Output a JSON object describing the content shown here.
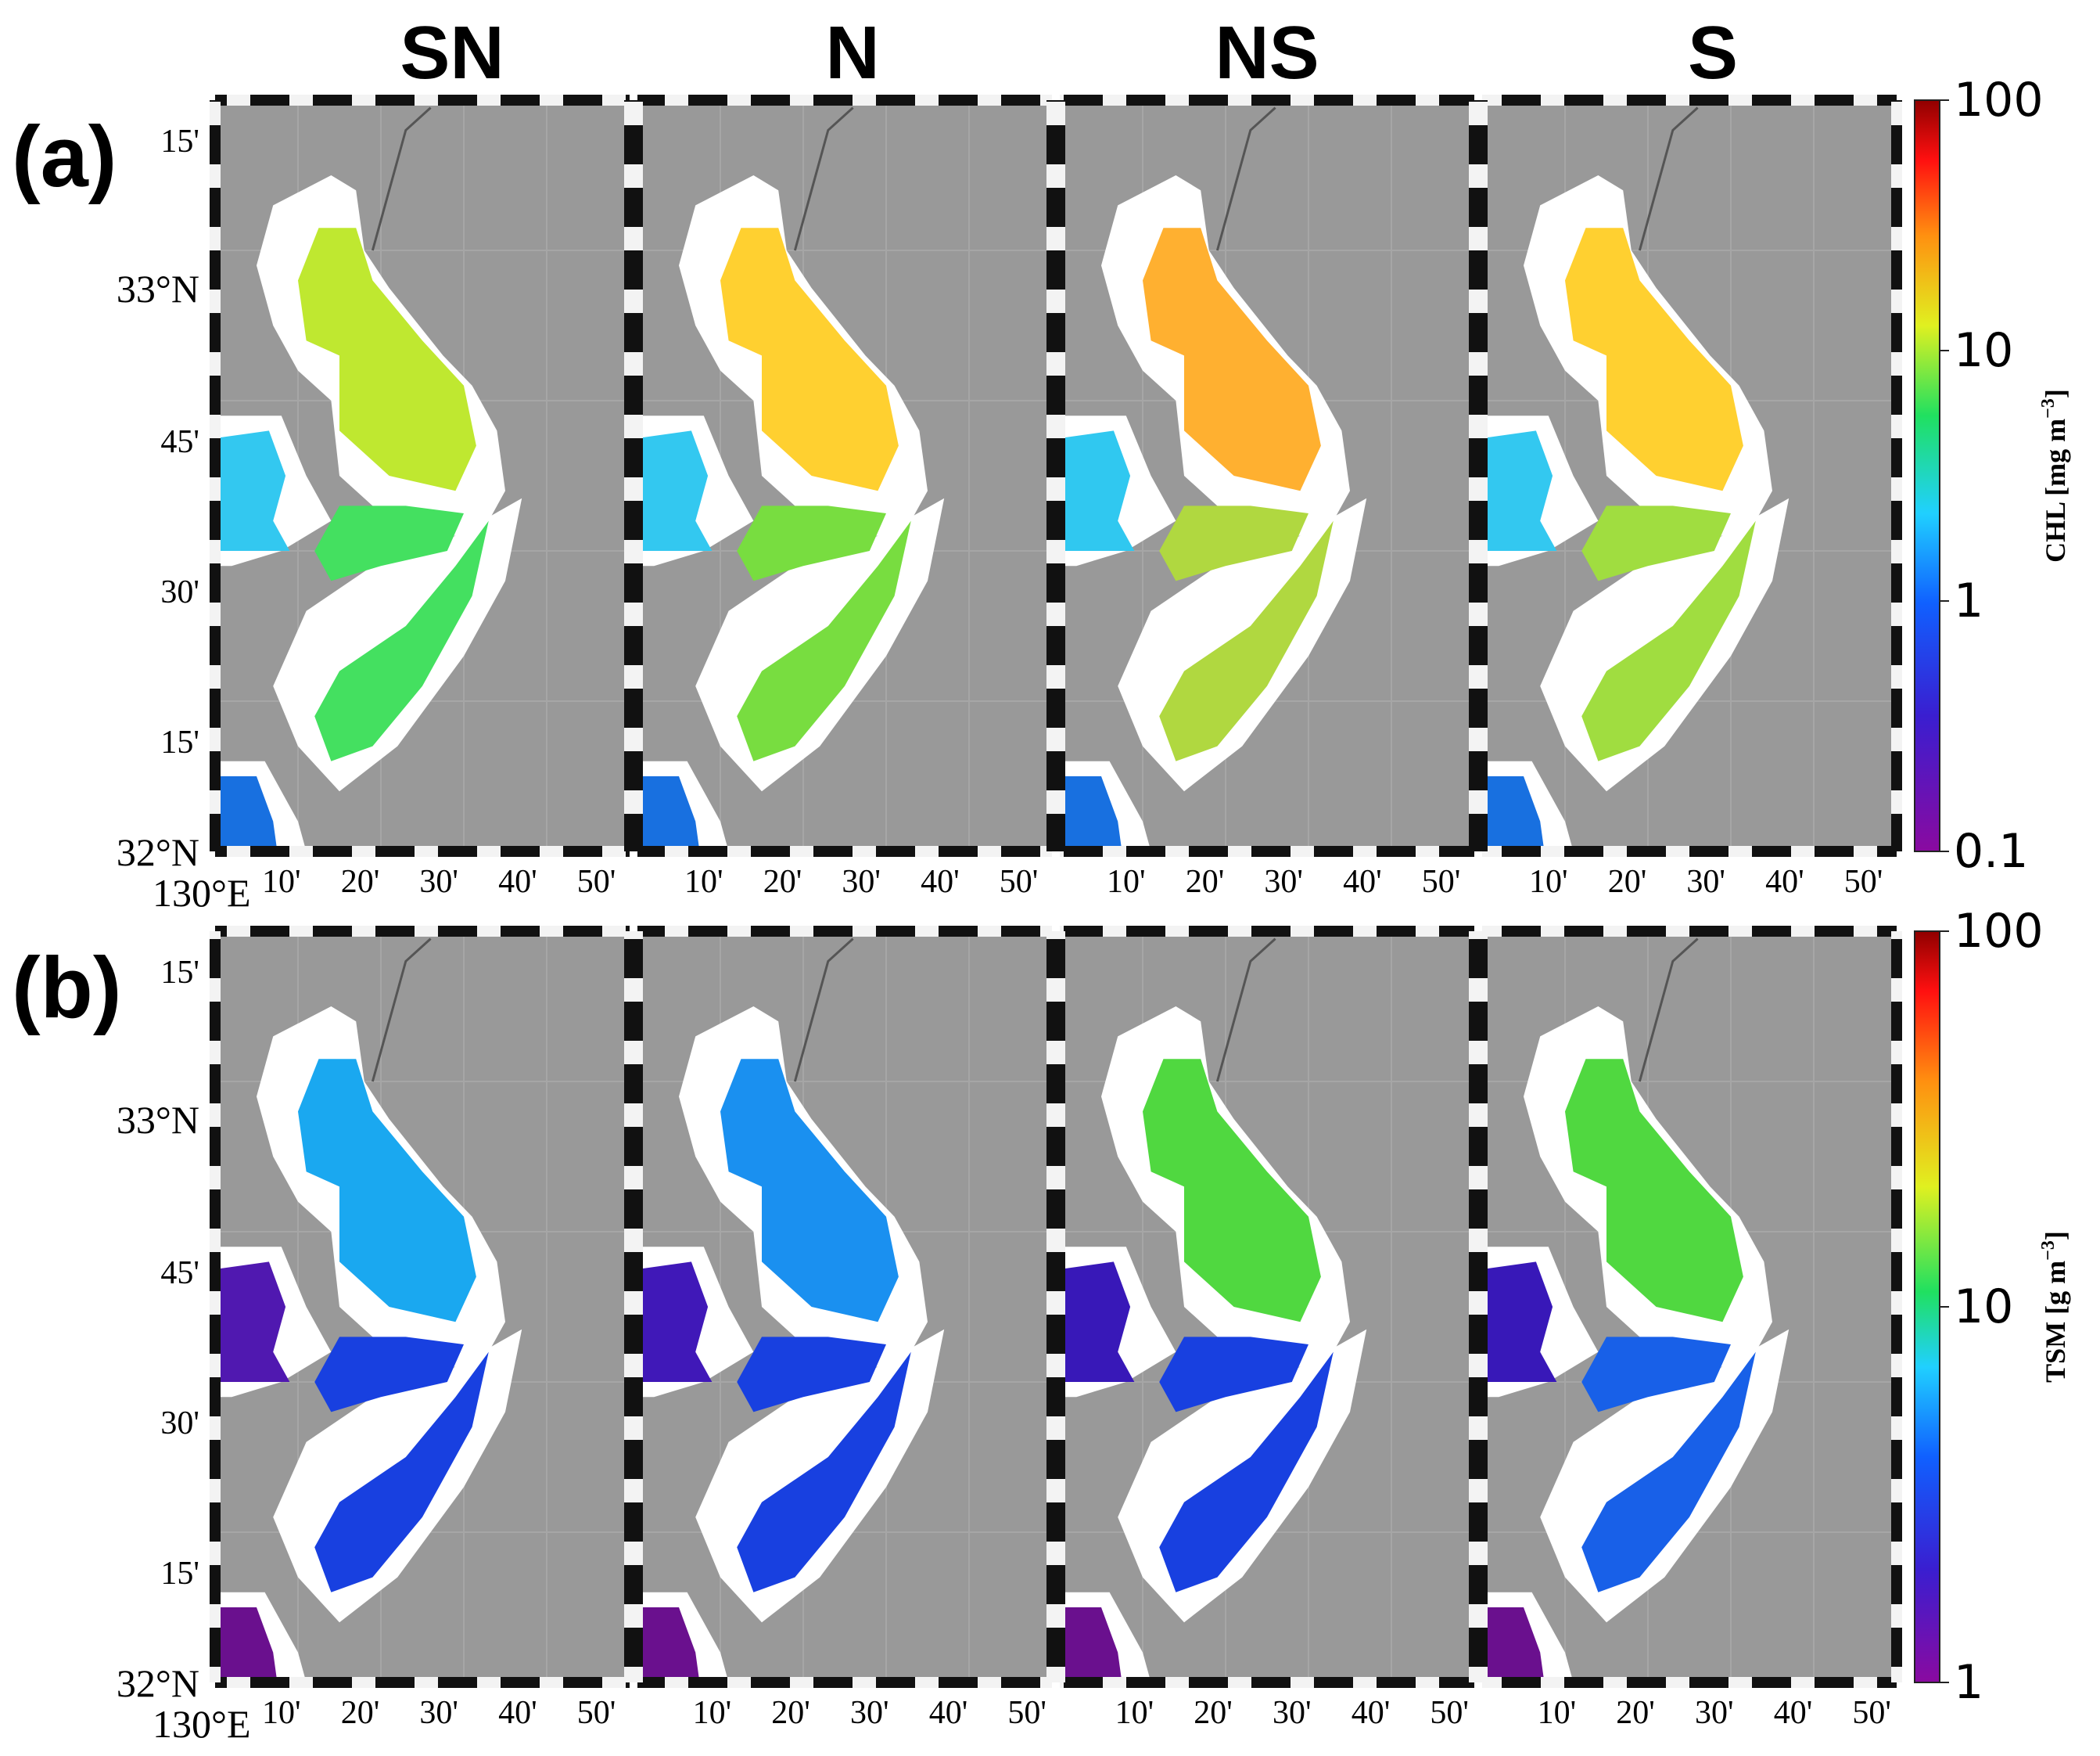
{
  "columns": [
    "SN",
    "N",
    "NS",
    "S"
  ],
  "panels": [
    {
      "label": "(a)",
      "variable": "CHL",
      "colorbar": {
        "ticks": [
          "100",
          "10",
          "1",
          "0.1"
        ],
        "label": "CHL [mg m",
        "label_sup": "−3",
        "label_end": "]",
        "scale": "log",
        "range": [
          0.1,
          100
        ]
      },
      "lat_ticks": [
        "15'",
        "33°N",
        "45'",
        "30'",
        "15'",
        "32°N"
      ],
      "lon_origin": "130°E",
      "lon_ticks": [
        "10'",
        "20'",
        "30'",
        "40'",
        "50'"
      ]
    },
    {
      "label": "(b)",
      "variable": "TSM",
      "colorbar": {
        "ticks": [
          "100",
          "10",
          "1"
        ],
        "label": "TSM [g m",
        "label_sup": "−3",
        "label_end": "]",
        "scale": "log",
        "range": [
          1,
          100
        ]
      },
      "lat_ticks": [
        "15'",
        "33°N",
        "45'",
        "30'",
        "15'",
        "32°N"
      ],
      "lon_origin": "130°E",
      "lon_ticks": [
        "10'",
        "20'",
        "30'",
        "40'",
        "50'"
      ]
    }
  ],
  "colors": {
    "land": "#999999",
    "coast": "#ffffff",
    "chl": {
      "SN": [
        "#bfe830",
        "#44e060",
        "#33c8f0",
        "#1870e0"
      ],
      "N": [
        "#ffd030",
        "#78dd40",
        "#33c8f0",
        "#1870e0"
      ],
      "NS": [
        "#ffb030",
        "#b0d840",
        "#30c8f0",
        "#1870e0"
      ],
      "S": [
        "#ffd030",
        "#a0dd40",
        "#33c8f0",
        "#1870e0"
      ]
    },
    "tsm": {
      "SN": [
        "#1aa8f0",
        "#1840e0",
        "#5018b0",
        "#6a108e"
      ],
      "N": [
        "#1a90f0",
        "#1840e0",
        "#4018b8",
        "#6a108e"
      ],
      "NS": [
        "#50d840",
        "#1840e0",
        "#3818b8",
        "#6a108e"
      ],
      "S": [
        "#50d840",
        "#1860e8",
        "#3818b8",
        "#6a108e"
      ]
    }
  }
}
